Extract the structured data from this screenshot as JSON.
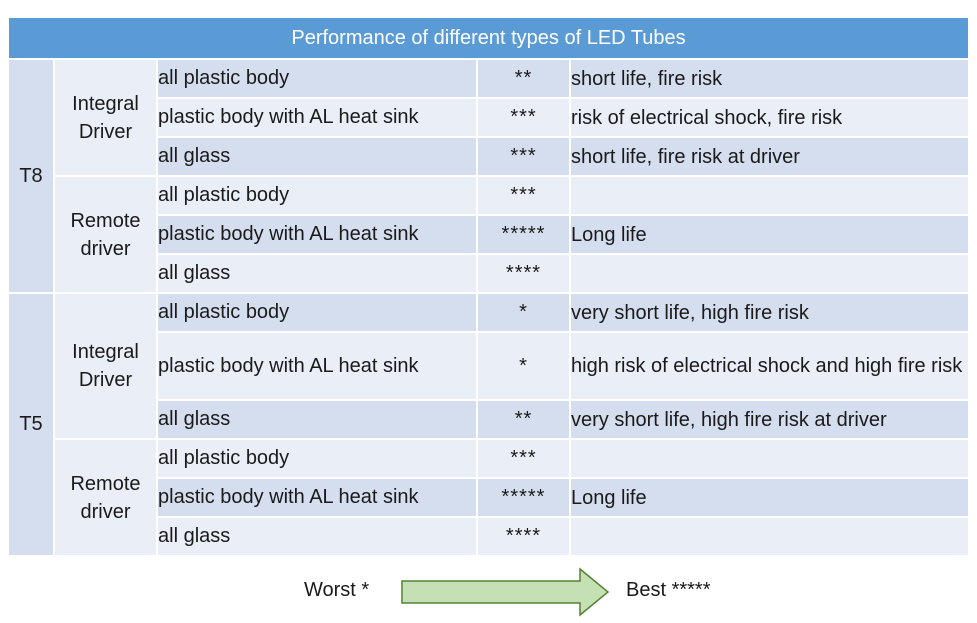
{
  "title": "Performance of different types of LED Tubes",
  "groups": [
    {
      "tube": "T8",
      "drivers": [
        {
          "driver": [
            "Integral",
            "Driver"
          ],
          "rows": [
            {
              "body": "all plastic body",
              "rating": "**",
              "comment": "short life, fire risk"
            },
            {
              "body": "plastic body with AL heat sink",
              "rating": "***",
              "comment": "risk of electrical shock, fire risk"
            },
            {
              "body": "all glass",
              "rating": "***",
              "comment": "short life, fire risk at driver"
            }
          ]
        },
        {
          "driver": [
            "Remote",
            "driver"
          ],
          "rows": [
            {
              "body": "all plastic body",
              "rating": "***",
              "comment": ""
            },
            {
              "body": "plastic body with AL heat sink",
              "rating": "*****",
              "comment": "Long life"
            },
            {
              "body": "all glass",
              "rating": "****",
              "comment": ""
            }
          ]
        }
      ]
    },
    {
      "tube": "T5",
      "drivers": [
        {
          "driver": [
            "Integral",
            "Driver"
          ],
          "rows": [
            {
              "body": "all plastic body",
              "rating": "*",
              "comment": "very short life, high fire risk"
            },
            {
              "body": "plastic body with AL heat sink",
              "rating": "*",
              "comment": "high risk of electrical shock and high fire risk"
            },
            {
              "body": "all glass",
              "rating": "**",
              "comment": "very short life, high fire risk at driver"
            }
          ]
        },
        {
          "driver": [
            "Remote",
            "driver"
          ],
          "rows": [
            {
              "body": "all plastic body",
              "rating": "***",
              "comment": ""
            },
            {
              "body": "plastic body with AL heat sink",
              "rating": "*****",
              "comment": "Long life"
            },
            {
              "body": "all glass",
              "rating": "****",
              "comment": ""
            }
          ]
        }
      ]
    }
  ],
  "legend": {
    "worst": "Worst *",
    "best": "Best *****",
    "arrow_fill": "#c5e0b4",
    "arrow_stroke": "#548235"
  },
  "colors": {
    "header": "#5b9bd5",
    "row_dark": "#d5deee",
    "row_light": "#e9eef7"
  }
}
